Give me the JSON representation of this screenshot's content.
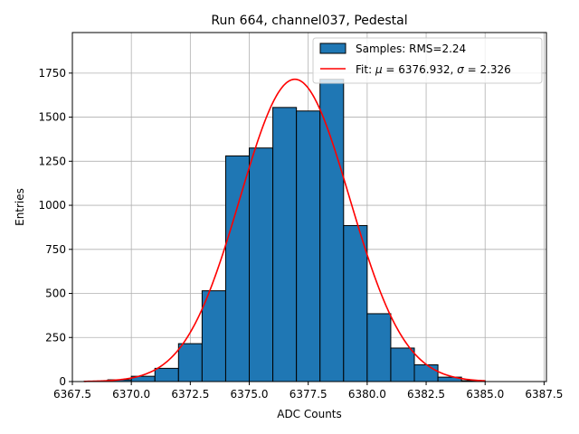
{
  "chart_data": {
    "type": "bar",
    "title": "Run 664, channel037, Pedestal",
    "xlabel": "ADC Counts",
    "ylabel": "Entries",
    "xlim": [
      6367.5,
      6387.6
    ],
    "ylim": [
      0,
      1980
    ],
    "grid": true,
    "legend_position": "top-right",
    "x_ticks": [
      6367.5,
      6370.0,
      6372.5,
      6375.0,
      6377.5,
      6380.0,
      6382.5,
      6385.0,
      6387.5
    ],
    "x_tick_labels": [
      "6367.5",
      "6370.0",
      "6372.5",
      "6375.0",
      "6377.5",
      "6380.0",
      "6382.5",
      "6385.0",
      "6387.5"
    ],
    "y_ticks": [
      0,
      250,
      500,
      750,
      1000,
      1250,
      1500,
      1750
    ],
    "y_tick_labels": [
      "0",
      "250",
      "500",
      "750",
      "1000",
      "1250",
      "1500",
      "1750"
    ],
    "histogram": {
      "name": "Samples: RMS=2.24",
      "color": "#1f77b4",
      "edge_color": "#000000",
      "bin_edges": [
        6368,
        6369,
        6370,
        6371,
        6372,
        6373,
        6374,
        6375,
        6376,
        6377,
        6378,
        6379,
        6380,
        6381,
        6382,
        6383,
        6384,
        6385
      ],
      "counts": [
        2,
        10,
        30,
        75,
        215,
        515,
        1280,
        1325,
        1555,
        1535,
        1715,
        885,
        385,
        190,
        95,
        25,
        5
      ]
    },
    "fit": {
      "name_prefix": "Fit: ",
      "name_mu": "μ",
      "name_mid": " = 6376.932, ",
      "name_sigma": "σ",
      "name_suffix": " = 2.326",
      "color": "#ff0000",
      "mu": 6376.932,
      "sigma": 2.326,
      "peak": 1715,
      "x_range": [
        6368,
        6385
      ]
    }
  }
}
